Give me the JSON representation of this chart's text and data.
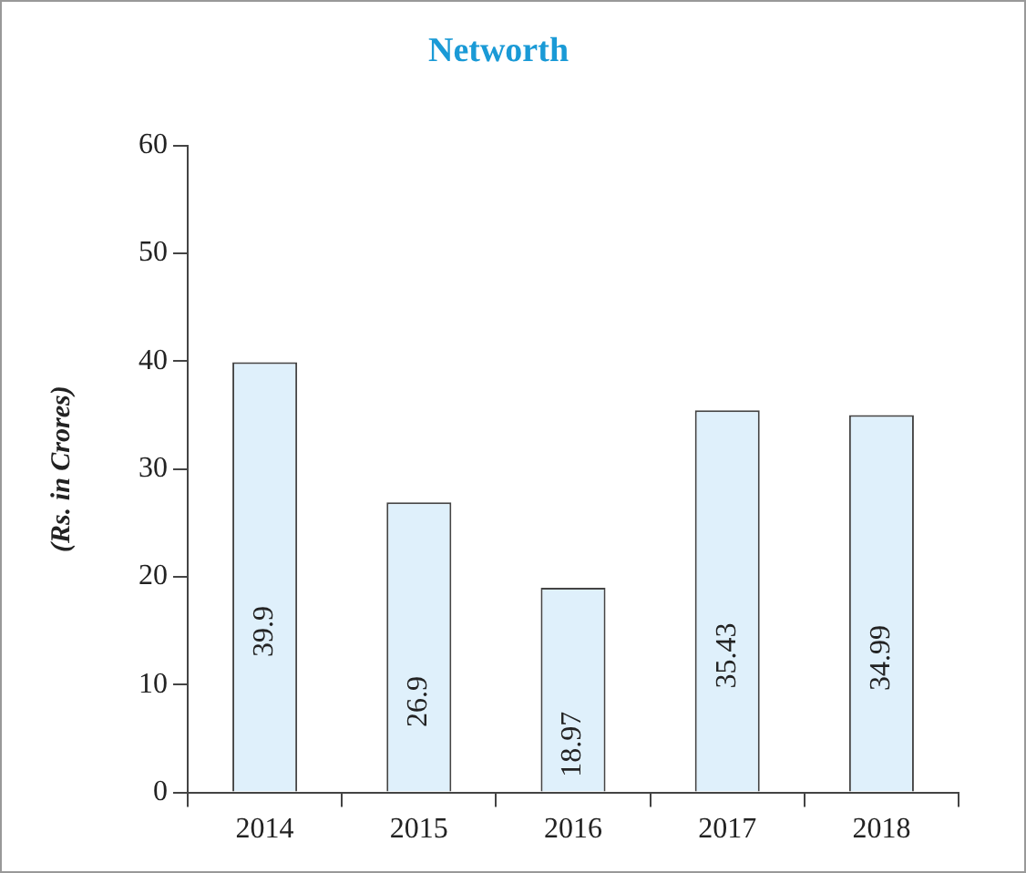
{
  "chart_data": {
    "type": "bar",
    "title": "Networth",
    "ylabel": "(Rs. in Crores)",
    "categories": [
      "2014",
      "2015",
      "2016",
      "2017",
      "2018"
    ],
    "values": [
      39.9,
      26.9,
      18.97,
      35.43,
      34.99
    ],
    "color": "#dff0fb",
    "ylim": [
      0,
      60
    ],
    "yticks": [
      0,
      10,
      20,
      30,
      40,
      50,
      60
    ],
    "grid": false,
    "legend": false,
    "data_labels": true
  }
}
